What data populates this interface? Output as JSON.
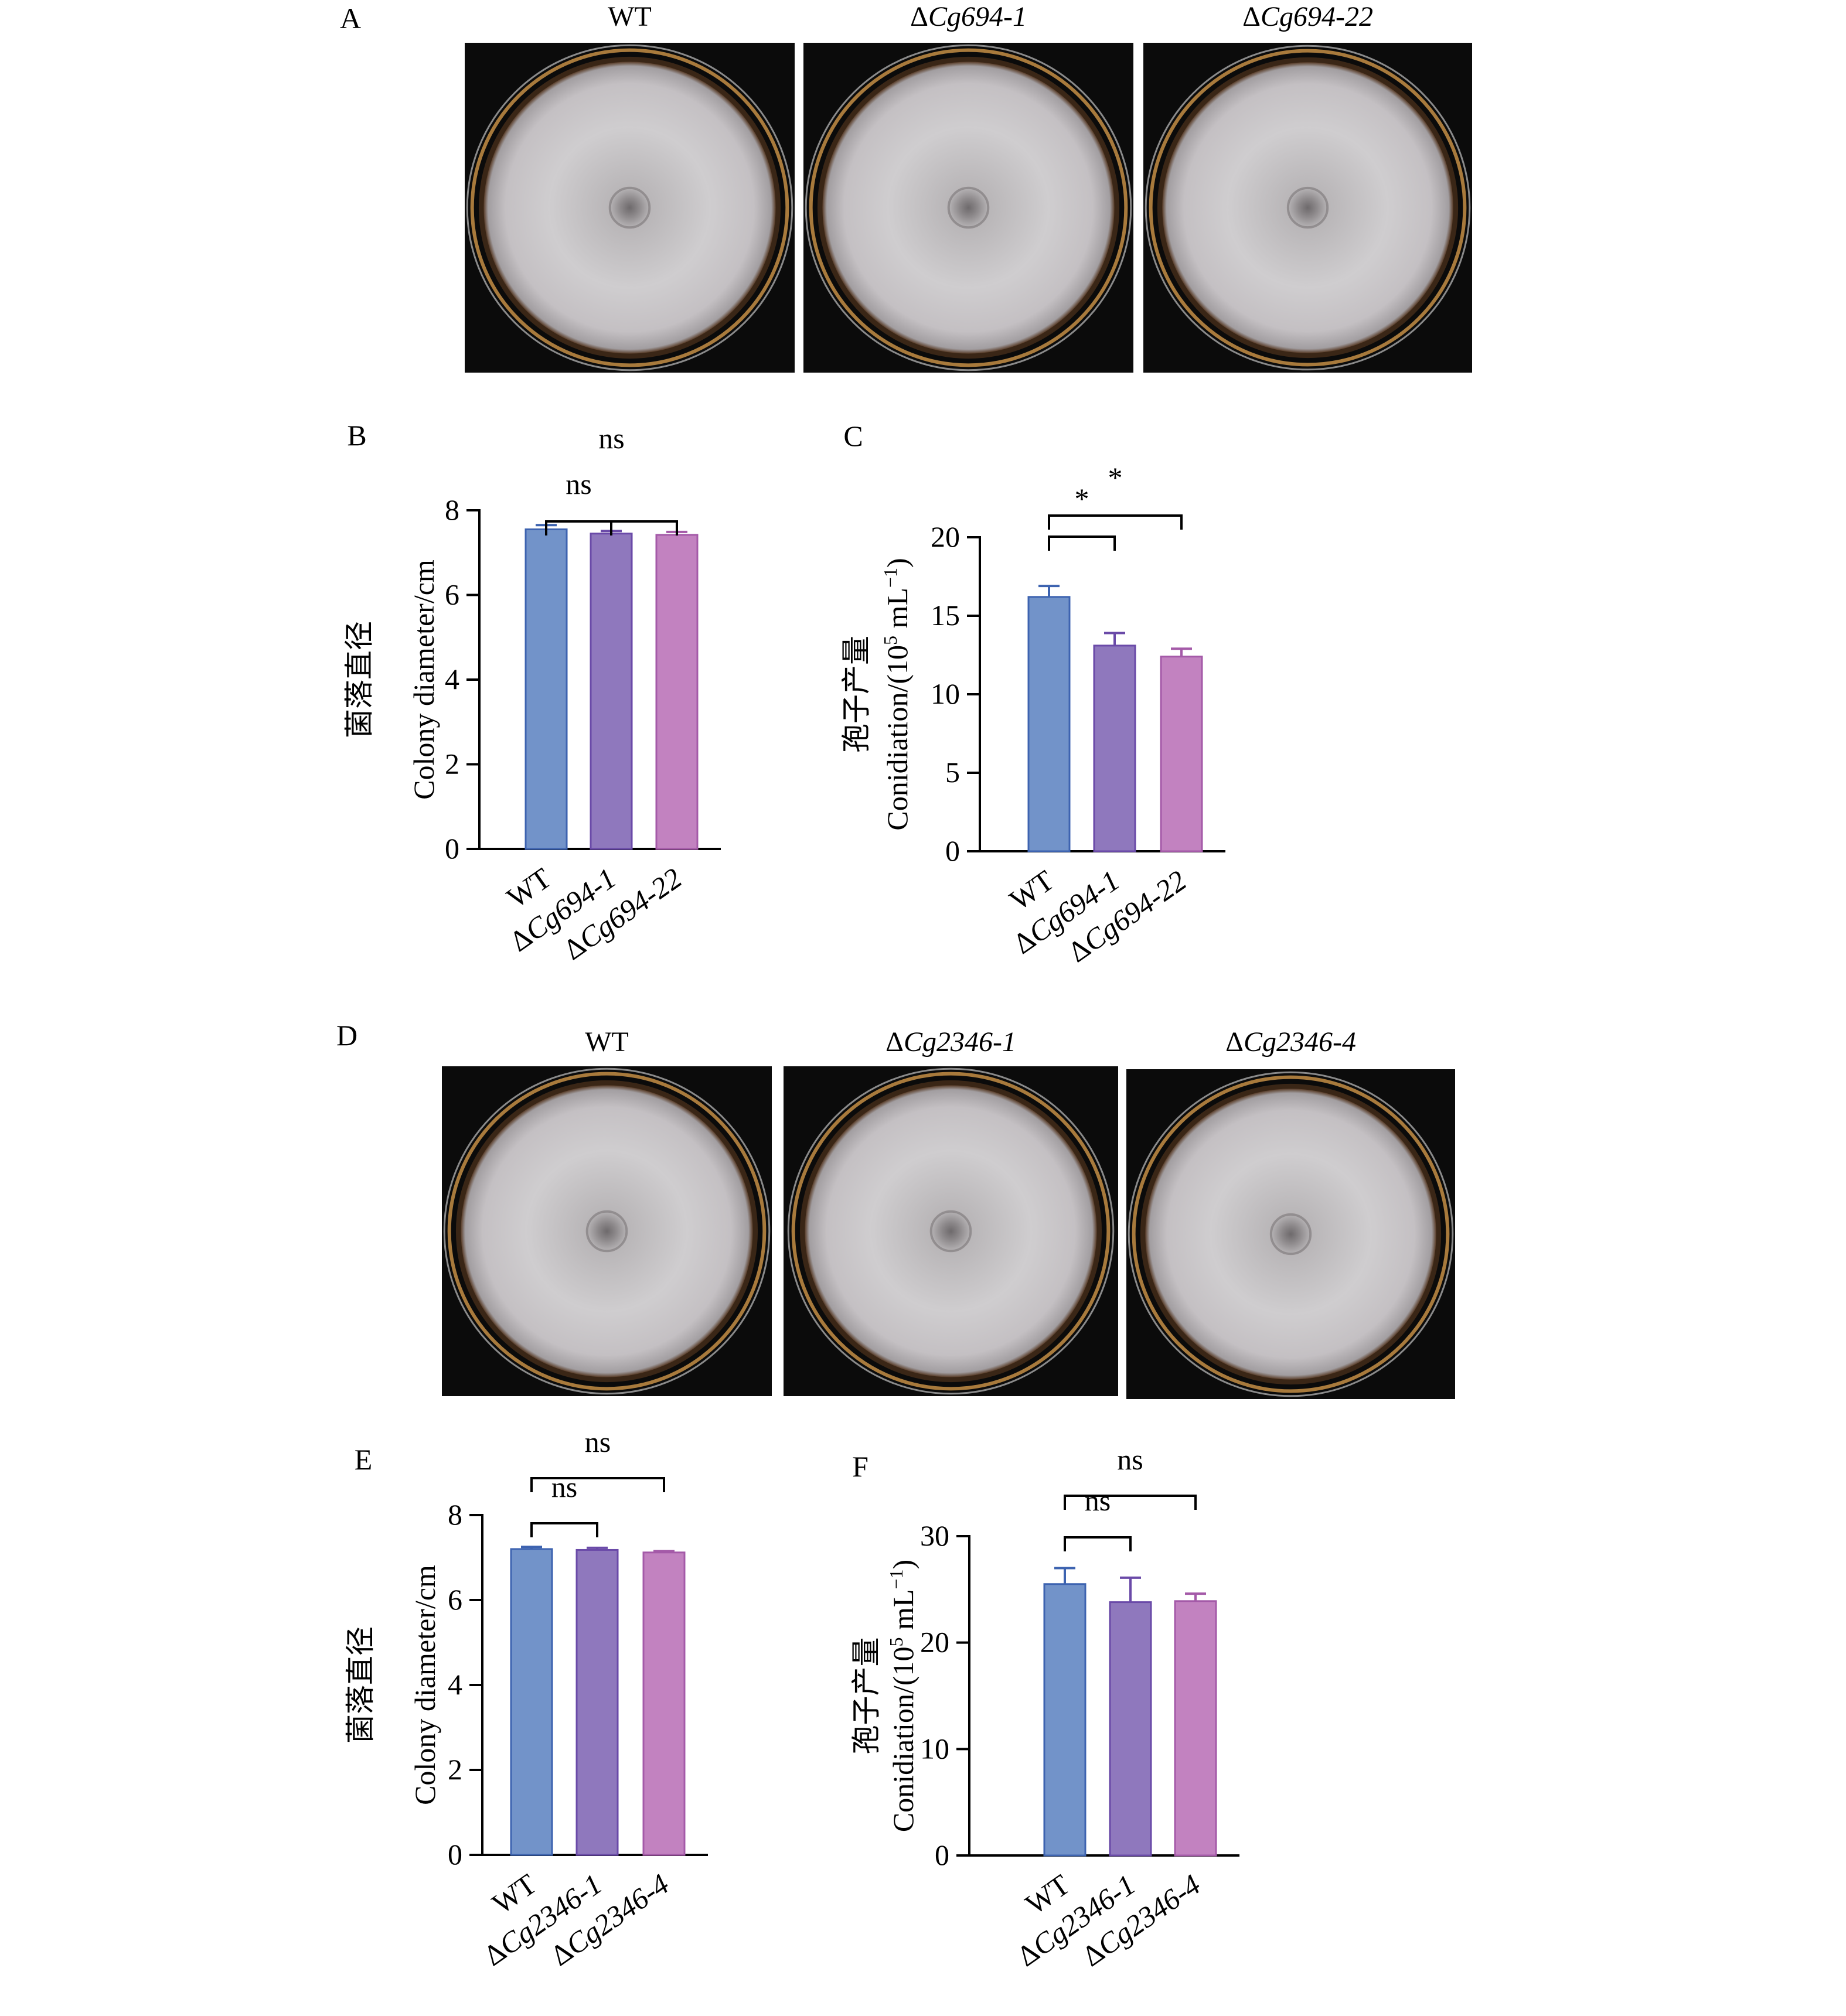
{
  "panels": {
    "A": {
      "letter": "A",
      "plate_labels": [
        {
          "prefix": "",
          "italic": "",
          "plain": "WT"
        },
        {
          "prefix": "Δ",
          "italic": "Cg694-1",
          "plain": ""
        },
        {
          "prefix": "Δ",
          "italic": "Cg694-22",
          "plain": ""
        }
      ]
    },
    "D": {
      "letter": "D",
      "plate_labels": [
        {
          "prefix": "",
          "italic": "",
          "plain": "WT"
        },
        {
          "prefix": "Δ",
          "italic": "Cg2346-1",
          "plain": ""
        },
        {
          "prefix": "Δ",
          "italic": "Cg2346-4",
          "plain": ""
        }
      ]
    }
  },
  "colors": {
    "bar_fill": [
      "#7293c9",
      "#8f78bd",
      "#c282c0"
    ],
    "bar_stroke": [
      "#3d63b0",
      "#6a4aa8",
      "#a45aa8"
    ],
    "plate_bg": "#0b0b0b"
  },
  "chart_data": [
    {
      "id": "B",
      "letter": "B",
      "type": "bar",
      "categories": [
        {
          "prefix": "",
          "italic": "",
          "plain": "WT"
        },
        {
          "prefix": "Δ",
          "italic": "Cg694-1",
          "plain": ""
        },
        {
          "prefix": "Δ",
          "italic": "Cg694-22",
          "plain": ""
        }
      ],
      "values": [
        7.55,
        7.45,
        7.42
      ],
      "errors": [
        0.1,
        0.06,
        0.07
      ],
      "ylabel_cn": "菌落直径",
      "ylabel_en": "Colony diameter/cm",
      "ylim": [
        0,
        8
      ],
      "yticks": [
        "0",
        "2",
        "4",
        "6",
        "8"
      ],
      "ytick_values": [
        0,
        2,
        4,
        6,
        8
      ],
      "comparisons": [
        {
          "from": 0,
          "to": 1,
          "label": "ns"
        },
        {
          "from": 0,
          "to": 2,
          "label": "ns"
        }
      ]
    },
    {
      "id": "C",
      "letter": "C",
      "type": "bar",
      "categories": [
        {
          "prefix": "",
          "italic": "",
          "plain": "WT"
        },
        {
          "prefix": "Δ",
          "italic": "Cg694-1",
          "plain": ""
        },
        {
          "prefix": "Δ",
          "italic": "Cg694-22",
          "plain": ""
        }
      ],
      "values": [
        16.2,
        13.1,
        12.4
      ],
      "errors": [
        0.7,
        0.8,
        0.5
      ],
      "ylabel_cn": "孢子产量",
      "ylabel_en": "Conidiation/(10",
      "ylabel_sup": "5",
      "ylabel_unit": " mL",
      "ylabel_unit_sup": "−1",
      "ylabel_close": ")",
      "ylim": [
        0,
        20
      ],
      "yticks": [
        "0",
        "5",
        "10",
        "15",
        "20"
      ],
      "ytick_values": [
        0,
        5,
        10,
        15,
        20
      ],
      "comparisons": [
        {
          "from": 0,
          "to": 1,
          "label": "*"
        },
        {
          "from": 0,
          "to": 2,
          "label": "*"
        }
      ]
    },
    {
      "id": "E",
      "letter": "E",
      "type": "bar",
      "categories": [
        {
          "prefix": "",
          "italic": "",
          "plain": "WT"
        },
        {
          "prefix": "Δ",
          "italic": "Cg2346-1",
          "plain": ""
        },
        {
          "prefix": "Δ",
          "italic": "Cg2346-4",
          "plain": ""
        }
      ],
      "values": [
        7.2,
        7.18,
        7.12
      ],
      "errors": [
        0.05,
        0.05,
        0.03
      ],
      "ylabel_cn": "菌落直径",
      "ylabel_en": "Colony diameter/cm",
      "ylim": [
        0,
        8
      ],
      "yticks": [
        "0",
        "2",
        "4",
        "6",
        "8"
      ],
      "ytick_values": [
        0,
        2,
        4,
        6,
        8
      ],
      "comparisons": [
        {
          "from": 0,
          "to": 1,
          "label": "ns"
        },
        {
          "from": 0,
          "to": 2,
          "label": "ns"
        }
      ]
    },
    {
      "id": "F",
      "letter": "F",
      "type": "bar",
      "categories": [
        {
          "prefix": "",
          "italic": "",
          "plain": "WT"
        },
        {
          "prefix": "Δ",
          "italic": "Cg2346-1",
          "plain": ""
        },
        {
          "prefix": "Δ",
          "italic": "Cg2346-4",
          "plain": ""
        }
      ],
      "values": [
        25.5,
        23.8,
        23.9
      ],
      "errors": [
        1.5,
        2.3,
        0.7
      ],
      "ylabel_cn": "孢子产量",
      "ylabel_en": "Conidiation/(10",
      "ylabel_sup": "5",
      "ylabel_unit": " mL",
      "ylabel_unit_sup": "−1",
      "ylabel_close": ")",
      "ylim": [
        0,
        30
      ],
      "yticks": [
        "0",
        "10",
        "20",
        "30"
      ],
      "ytick_values": [
        0,
        10,
        20,
        30
      ],
      "comparisons": [
        {
          "from": 0,
          "to": 1,
          "label": "ns"
        },
        {
          "from": 0,
          "to": 2,
          "label": "ns"
        }
      ]
    }
  ]
}
